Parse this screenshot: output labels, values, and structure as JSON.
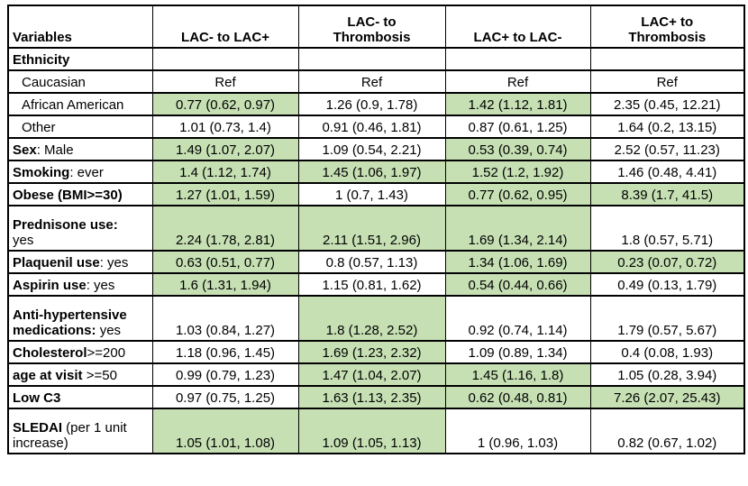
{
  "table": {
    "highlight_color": "#c6e0b4",
    "header": {
      "variables_label": "Variables",
      "columns": [
        "LAC- to LAC+",
        "LAC- to\nThrombosis",
        "LAC+ to LAC-",
        "LAC+ to\nThrombosis"
      ]
    },
    "rows": [
      {
        "label_bold": "Ethnicity",
        "label_rest": "",
        "indent": false,
        "tall": false,
        "values": [
          "",
          "",
          "",
          ""
        ],
        "highlight": [
          false,
          false,
          false,
          false
        ]
      },
      {
        "label_bold": "",
        "label_rest": "Caucasian",
        "indent": true,
        "tall": false,
        "values": [
          "Ref",
          "Ref",
          "Ref",
          "Ref"
        ],
        "highlight": [
          false,
          false,
          false,
          false
        ]
      },
      {
        "label_bold": "",
        "label_rest": "African American",
        "indent": true,
        "tall": false,
        "values": [
          "0.77 (0.62, 0.97)",
          "1.26 (0.9, 1.78)",
          "1.42 (1.12, 1.81)",
          "2.35 (0.45, 12.21)"
        ],
        "highlight": [
          true,
          false,
          true,
          false
        ]
      },
      {
        "label_bold": "",
        "label_rest": "Other",
        "indent": true,
        "tall": false,
        "values": [
          "1.01 (0.73, 1.4)",
          "0.91 (0.46, 1.81)",
          "0.87 (0.61, 1.25)",
          "1.64 (0.2, 13.15)"
        ],
        "highlight": [
          false,
          false,
          false,
          false
        ]
      },
      {
        "label_bold": "Sex",
        "label_rest": ": Male",
        "indent": false,
        "tall": false,
        "values": [
          "1.49 (1.07, 2.07)",
          "1.09 (0.54, 2.21)",
          "0.53 (0.39, 0.74)",
          "2.52 (0.57, 11.23)"
        ],
        "highlight": [
          true,
          false,
          true,
          false
        ]
      },
      {
        "label_bold": "Smoking",
        "label_rest": ": ever",
        "indent": false,
        "tall": false,
        "values": [
          "1.4 (1.12, 1.74)",
          "1.45 (1.06, 1.97)",
          "1.52 (1.2, 1.92)",
          "1.46 (0.48, 4.41)"
        ],
        "highlight": [
          true,
          true,
          true,
          false
        ]
      },
      {
        "label_bold": "Obese (BMI>=30)",
        "label_rest": "",
        "indent": false,
        "tall": false,
        "values": [
          "1.27 (1.01, 1.59)",
          "1 (0.7, 1.43)",
          "0.77 (0.62, 0.95)",
          "8.39 (1.7, 41.5)"
        ],
        "highlight": [
          true,
          false,
          true,
          true
        ]
      },
      {
        "label_bold": "Prednisone use:",
        "label_rest": "\nyes",
        "indent": false,
        "tall": true,
        "values": [
          "2.24 (1.78, 2.81)",
          "2.11 (1.51, 2.96)",
          "1.69 (1.34, 2.14)",
          "1.8 (0.57, 5.71)"
        ],
        "highlight": [
          true,
          true,
          true,
          false
        ]
      },
      {
        "label_bold": "Plaquenil use",
        "label_rest": ": yes",
        "indent": false,
        "tall": false,
        "values": [
          "0.63 (0.51, 0.77)",
          "0.8 (0.57, 1.13)",
          "1.34 (1.06, 1.69)",
          "0.23 (0.07, 0.72)"
        ],
        "highlight": [
          true,
          false,
          true,
          true
        ]
      },
      {
        "label_bold": "Aspirin use",
        "label_rest": ": yes",
        "indent": false,
        "tall": false,
        "values": [
          "1.6 (1.31, 1.94)",
          "1.15 (0.81, 1.62)",
          "0.54 (0.44, 0.66)",
          "0.49 (0.13, 1.79)"
        ],
        "highlight": [
          true,
          false,
          true,
          false
        ]
      },
      {
        "label_bold": "Anti-hypertensive medications:",
        "label_rest": " yes",
        "indent": false,
        "tall": true,
        "values": [
          "1.03 (0.84, 1.27)",
          "1.8 (1.28, 2.52)",
          "0.92 (0.74, 1.14)",
          "1.79 (0.57, 5.67)"
        ],
        "highlight": [
          false,
          true,
          false,
          false
        ]
      },
      {
        "label_bold": "Cholesterol",
        "label_rest": ">=200",
        "indent": false,
        "tall": false,
        "values": [
          "1.18 (0.96, 1.45)",
          "1.69 (1.23, 2.32)",
          "1.09 (0.89, 1.34)",
          "0.4 (0.08, 1.93)"
        ],
        "highlight": [
          false,
          true,
          false,
          false
        ]
      },
      {
        "label_bold": "age at visit",
        "label_rest": " >=50",
        "indent": false,
        "tall": false,
        "values": [
          "0.99 (0.79, 1.23)",
          "1.47 (1.04, 2.07)",
          "1.45 (1.16, 1.8)",
          "1.05 (0.28, 3.94)"
        ],
        "highlight": [
          false,
          true,
          true,
          false
        ]
      },
      {
        "label_bold": "Low C3",
        "label_rest": "",
        "indent": false,
        "tall": false,
        "values": [
          "0.97 (0.75, 1.25)",
          "1.63 (1.13, 2.35)",
          "0.62 (0.48, 0.81)",
          "7.26 (2.07, 25.43)"
        ],
        "highlight": [
          false,
          true,
          true,
          true
        ]
      },
      {
        "label_bold": "SLEDAI",
        "label_rest": " (per 1 unit increase)",
        "indent": false,
        "tall": true,
        "values": [
          "1.05 (1.01, 1.08)",
          "1.09 (1.05, 1.13)",
          "1 (0.96, 1.03)",
          "0.82 (0.67, 1.02)"
        ],
        "highlight": [
          true,
          true,
          false,
          false
        ]
      }
    ]
  }
}
